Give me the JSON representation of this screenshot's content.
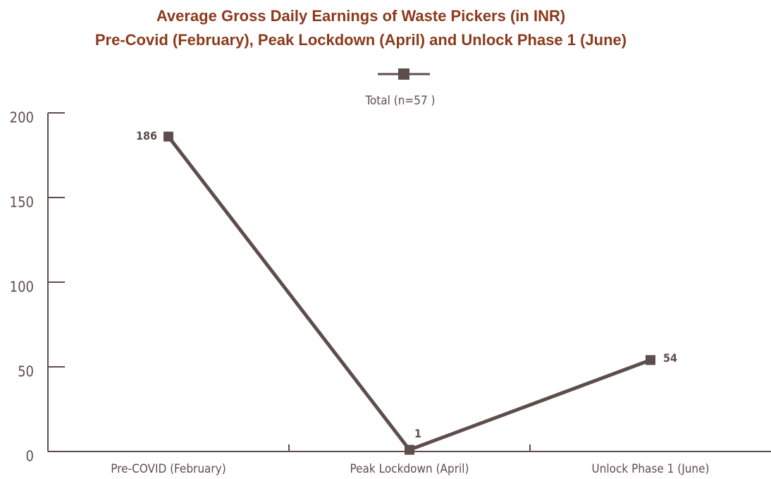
{
  "chart_data": {
    "type": "line",
    "title": "Average Gross Daily Earnings of Waste Pickers (in INR)",
    "subtitle": "Pre-Covid (February), Peak Lockdown (April) and Unlock Phase 1 (June)",
    "categories": [
      "Pre-COVID (February)",
      "Peak Lockdown (April)",
      "Unlock Phase 1 (June)"
    ],
    "series": [
      {
        "name": "Total (n=57 )",
        "color": "#5e4e4b",
        "values": [
          186,
          1,
          54
        ]
      }
    ],
    "ylim": [
      0,
      200
    ],
    "yticks": [
      0,
      50,
      100,
      150,
      200
    ],
    "grid": false,
    "legend": "top"
  }
}
